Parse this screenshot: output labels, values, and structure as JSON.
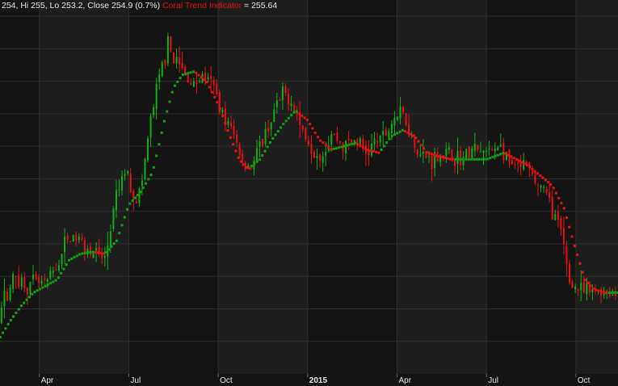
{
  "legend": {
    "ohlc_text": "254, Hi 255, Lo 253.2, Close 254.9 (0.7%)",
    "indicator_name": "Coral Trend Indicator",
    "indicator_value": "= 255.64"
  },
  "colors": {
    "background": "#141414",
    "band_alt": "#1d1d1d",
    "grid": "#2e2e2e",
    "bull": "#10b010",
    "bear": "#e81010",
    "coral_up": "#10a010",
    "coral_down": "#e81010",
    "text": "#e6e6e6"
  },
  "chart_data": {
    "type": "candlestick",
    "title": "",
    "indicator": "Coral Trend Indicator",
    "ylim": [
      170,
      285
    ],
    "y_gridlines": [
      180,
      190,
      200,
      210,
      220,
      230,
      240,
      250,
      260,
      270,
      280
    ],
    "x_range": [
      0,
      24
    ],
    "x_ticks": [
      {
        "label": "Apr",
        "x": 3,
        "bold": false
      },
      {
        "label": "Jul",
        "x": 6,
        "bold": false
      },
      {
        "label": "Oct",
        "x": 9,
        "bold": false
      },
      {
        "label": "2015",
        "x": 12,
        "bold": true
      },
      {
        "label": "Apr",
        "x": 15,
        "bold": false
      },
      {
        "label": "Jul",
        "x": 18,
        "bold": false
      },
      {
        "label": "Oct",
        "x": 21,
        "bold": false
      }
    ],
    "price_path": [
      [
        0.0,
        172
      ],
      [
        0.3,
        176
      ],
      [
        0.6,
        174
      ],
      [
        1.0,
        175
      ],
      [
        1.3,
        176
      ],
      [
        1.6,
        187
      ],
      [
        1.9,
        195
      ],
      [
        2.2,
        200
      ],
      [
        2.6,
        197
      ],
      [
        2.9,
        198
      ],
      [
        3.2,
        197
      ],
      [
        3.6,
        203
      ],
      [
        3.9,
        211
      ],
      [
        4.2,
        212
      ],
      [
        4.5,
        210
      ],
      [
        4.9,
        207
      ],
      [
        5.2,
        205
      ],
      [
        5.6,
        225
      ],
      [
        5.9,
        233
      ],
      [
        6.2,
        224
      ],
      [
        6.4,
        226
      ],
      [
        6.7,
        246
      ],
      [
        7.0,
        260
      ],
      [
        7.3,
        271
      ],
      [
        7.6,
        266
      ],
      [
        7.9,
        262
      ],
      [
        8.2,
        259
      ],
      [
        8.5,
        262
      ],
      [
        8.9,
        257
      ],
      [
        9.2,
        249
      ],
      [
        9.5,
        244
      ],
      [
        9.9,
        234
      ],
      [
        10.2,
        235
      ],
      [
        10.5,
        242
      ],
      [
        10.9,
        251
      ],
      [
        11.2,
        256
      ],
      [
        11.5,
        254
      ],
      [
        11.8,
        245
      ],
      [
        12.2,
        239
      ],
      [
        12.5,
        238
      ],
      [
        12.8,
        244
      ],
      [
        13.2,
        240
      ],
      [
        13.6,
        242
      ],
      [
        14.0,
        238
      ],
      [
        14.3,
        242
      ],
      [
        14.6,
        243
      ],
      [
        14.9,
        249
      ],
      [
        15.2,
        250
      ],
      [
        15.5,
        243
      ],
      [
        15.8,
        237
      ],
      [
        16.2,
        236
      ],
      [
        16.5,
        238
      ],
      [
        16.8,
        237
      ],
      [
        17.2,
        236
      ],
      [
        17.5,
        239
      ],
      [
        17.8,
        238
      ],
      [
        18.1,
        238
      ],
      [
        18.4,
        241
      ],
      [
        18.7,
        235
      ],
      [
        19.0,
        233
      ],
      [
        19.3,
        234
      ],
      [
        19.6,
        229
      ],
      [
        19.9,
        227
      ],
      [
        20.2,
        221
      ],
      [
        20.5,
        213
      ],
      [
        20.8,
        198
      ],
      [
        21.2,
        195
      ],
      [
        21.5,
        195
      ],
      [
        21.8,
        196
      ],
      [
        22.1,
        195
      ],
      [
        22.4,
        194
      ],
      [
        22.7,
        196
      ],
      [
        23.0,
        196
      ]
    ],
    "coral_path": [
      [
        0.0,
        173
      ],
      [
        0.5,
        174
      ],
      [
        1.0,
        174.5
      ],
      [
        1.3,
        175
      ],
      [
        1.6,
        180
      ],
      [
        2.0,
        186
      ],
      [
        2.4,
        191
      ],
      [
        2.8,
        195
      ],
      [
        3.2,
        197
      ],
      [
        3.6,
        199
      ],
      [
        4.0,
        205
      ],
      [
        4.4,
        207
      ],
      [
        4.8,
        207.5
      ],
      [
        5.2,
        207
      ],
      [
        5.6,
        211
      ],
      [
        6.0,
        222
      ],
      [
        6.4,
        226
      ],
      [
        6.8,
        232
      ],
      [
        7.2,
        248
      ],
      [
        7.5,
        258
      ],
      [
        7.8,
        262
      ],
      [
        8.2,
        263
      ],
      [
        8.6,
        260
      ],
      [
        9.0,
        253
      ],
      [
        9.4,
        243
      ],
      [
        9.7,
        236
      ],
      [
        10.0,
        233
      ],
      [
        10.4,
        236
      ],
      [
        10.8,
        242
      ],
      [
        11.2,
        247
      ],
      [
        11.6,
        251
      ],
      [
        12.0,
        248
      ],
      [
        12.4,
        242
      ],
      [
        12.8,
        239
      ],
      [
        13.2,
        240
      ],
      [
        13.6,
        241
      ],
      [
        14.0,
        239
      ],
      [
        14.4,
        238
      ],
      [
        14.8,
        243
      ],
      [
        15.2,
        245
      ],
      [
        15.6,
        243
      ],
      [
        16.0,
        238
      ],
      [
        16.4,
        237
      ],
      [
        16.8,
        236
      ],
      [
        17.2,
        236
      ],
      [
        17.6,
        236
      ],
      [
        18.0,
        236
      ],
      [
        18.3,
        237
      ],
      [
        18.6,
        238
      ],
      [
        19.0,
        236
      ],
      [
        19.4,
        234
      ],
      [
        19.8,
        231
      ],
      [
        20.2,
        228
      ],
      [
        20.6,
        221
      ],
      [
        21.0,
        208
      ],
      [
        21.3,
        199
      ],
      [
        21.6,
        196
      ],
      [
        22.0,
        195
      ],
      [
        22.4,
        195
      ],
      [
        22.8,
        195.5
      ],
      [
        23.0,
        196
      ]
    ],
    "coral_points": 260,
    "candle_count": 240,
    "last": {
      "open": 254,
      "high": 255,
      "low": 253.2,
      "close": 254.9,
      "change_pct": 0.7,
      "coral": 255.64
    }
  }
}
